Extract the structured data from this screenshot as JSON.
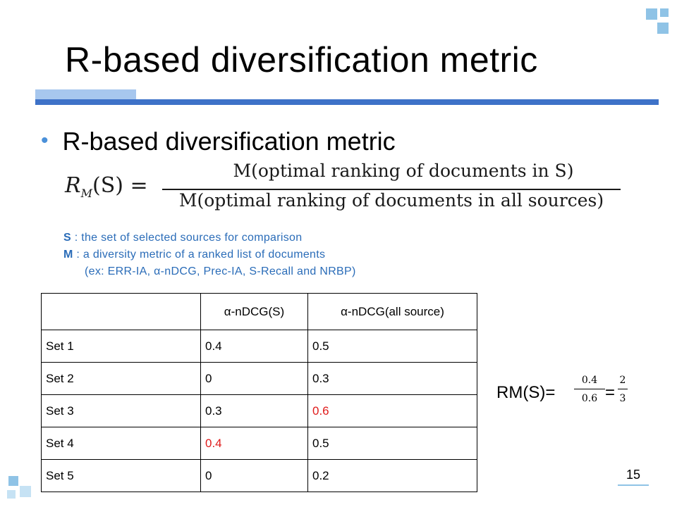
{
  "slide": {
    "title": "R-based diversification metric",
    "page_number": "15",
    "accent_color": "#3e72c8"
  },
  "bullet": {
    "text": "R-based diversification metric"
  },
  "formula": {
    "lhs_main": "R",
    "lhs_sub": "M",
    "lhs_rest": "(S) =",
    "numerator": "M(optimal ranking of documents in S)",
    "denominator": "M(optimal ranking of documents in all sources)"
  },
  "notes": {
    "s_key": "S",
    "s_desc": " : the set of selected sources for comparison",
    "m_key": "M",
    "m_desc": " : a diversity metric of a ranked list of documents",
    "m_examples": "(ex: ERR-IA, α-nDCG, Prec-IA, S-Recall and NRBP)"
  },
  "table": {
    "headers": [
      "",
      "α-nDCG(S)",
      "α-nDCG(all source)"
    ],
    "rows": [
      {
        "label": "Set 1",
        "s": "0.4",
        "all": "0.5"
      },
      {
        "label": "Set 2",
        "s": "0",
        "all": "0.3"
      },
      {
        "label": "Set 3",
        "s": "0.3",
        "all": "0.6"
      },
      {
        "label": "Set 4",
        "s": "0.4",
        "all": "0.5"
      },
      {
        "label": "Set 5",
        "s": "0",
        "all": "0.2"
      }
    ],
    "highlight_color": "#e01b1b"
  },
  "result": {
    "label": "RM(S)=",
    "frac1_num": "0.4",
    "frac1_den": "0.6",
    "equals": "=",
    "frac2_num": "2",
    "frac2_den": "3"
  }
}
